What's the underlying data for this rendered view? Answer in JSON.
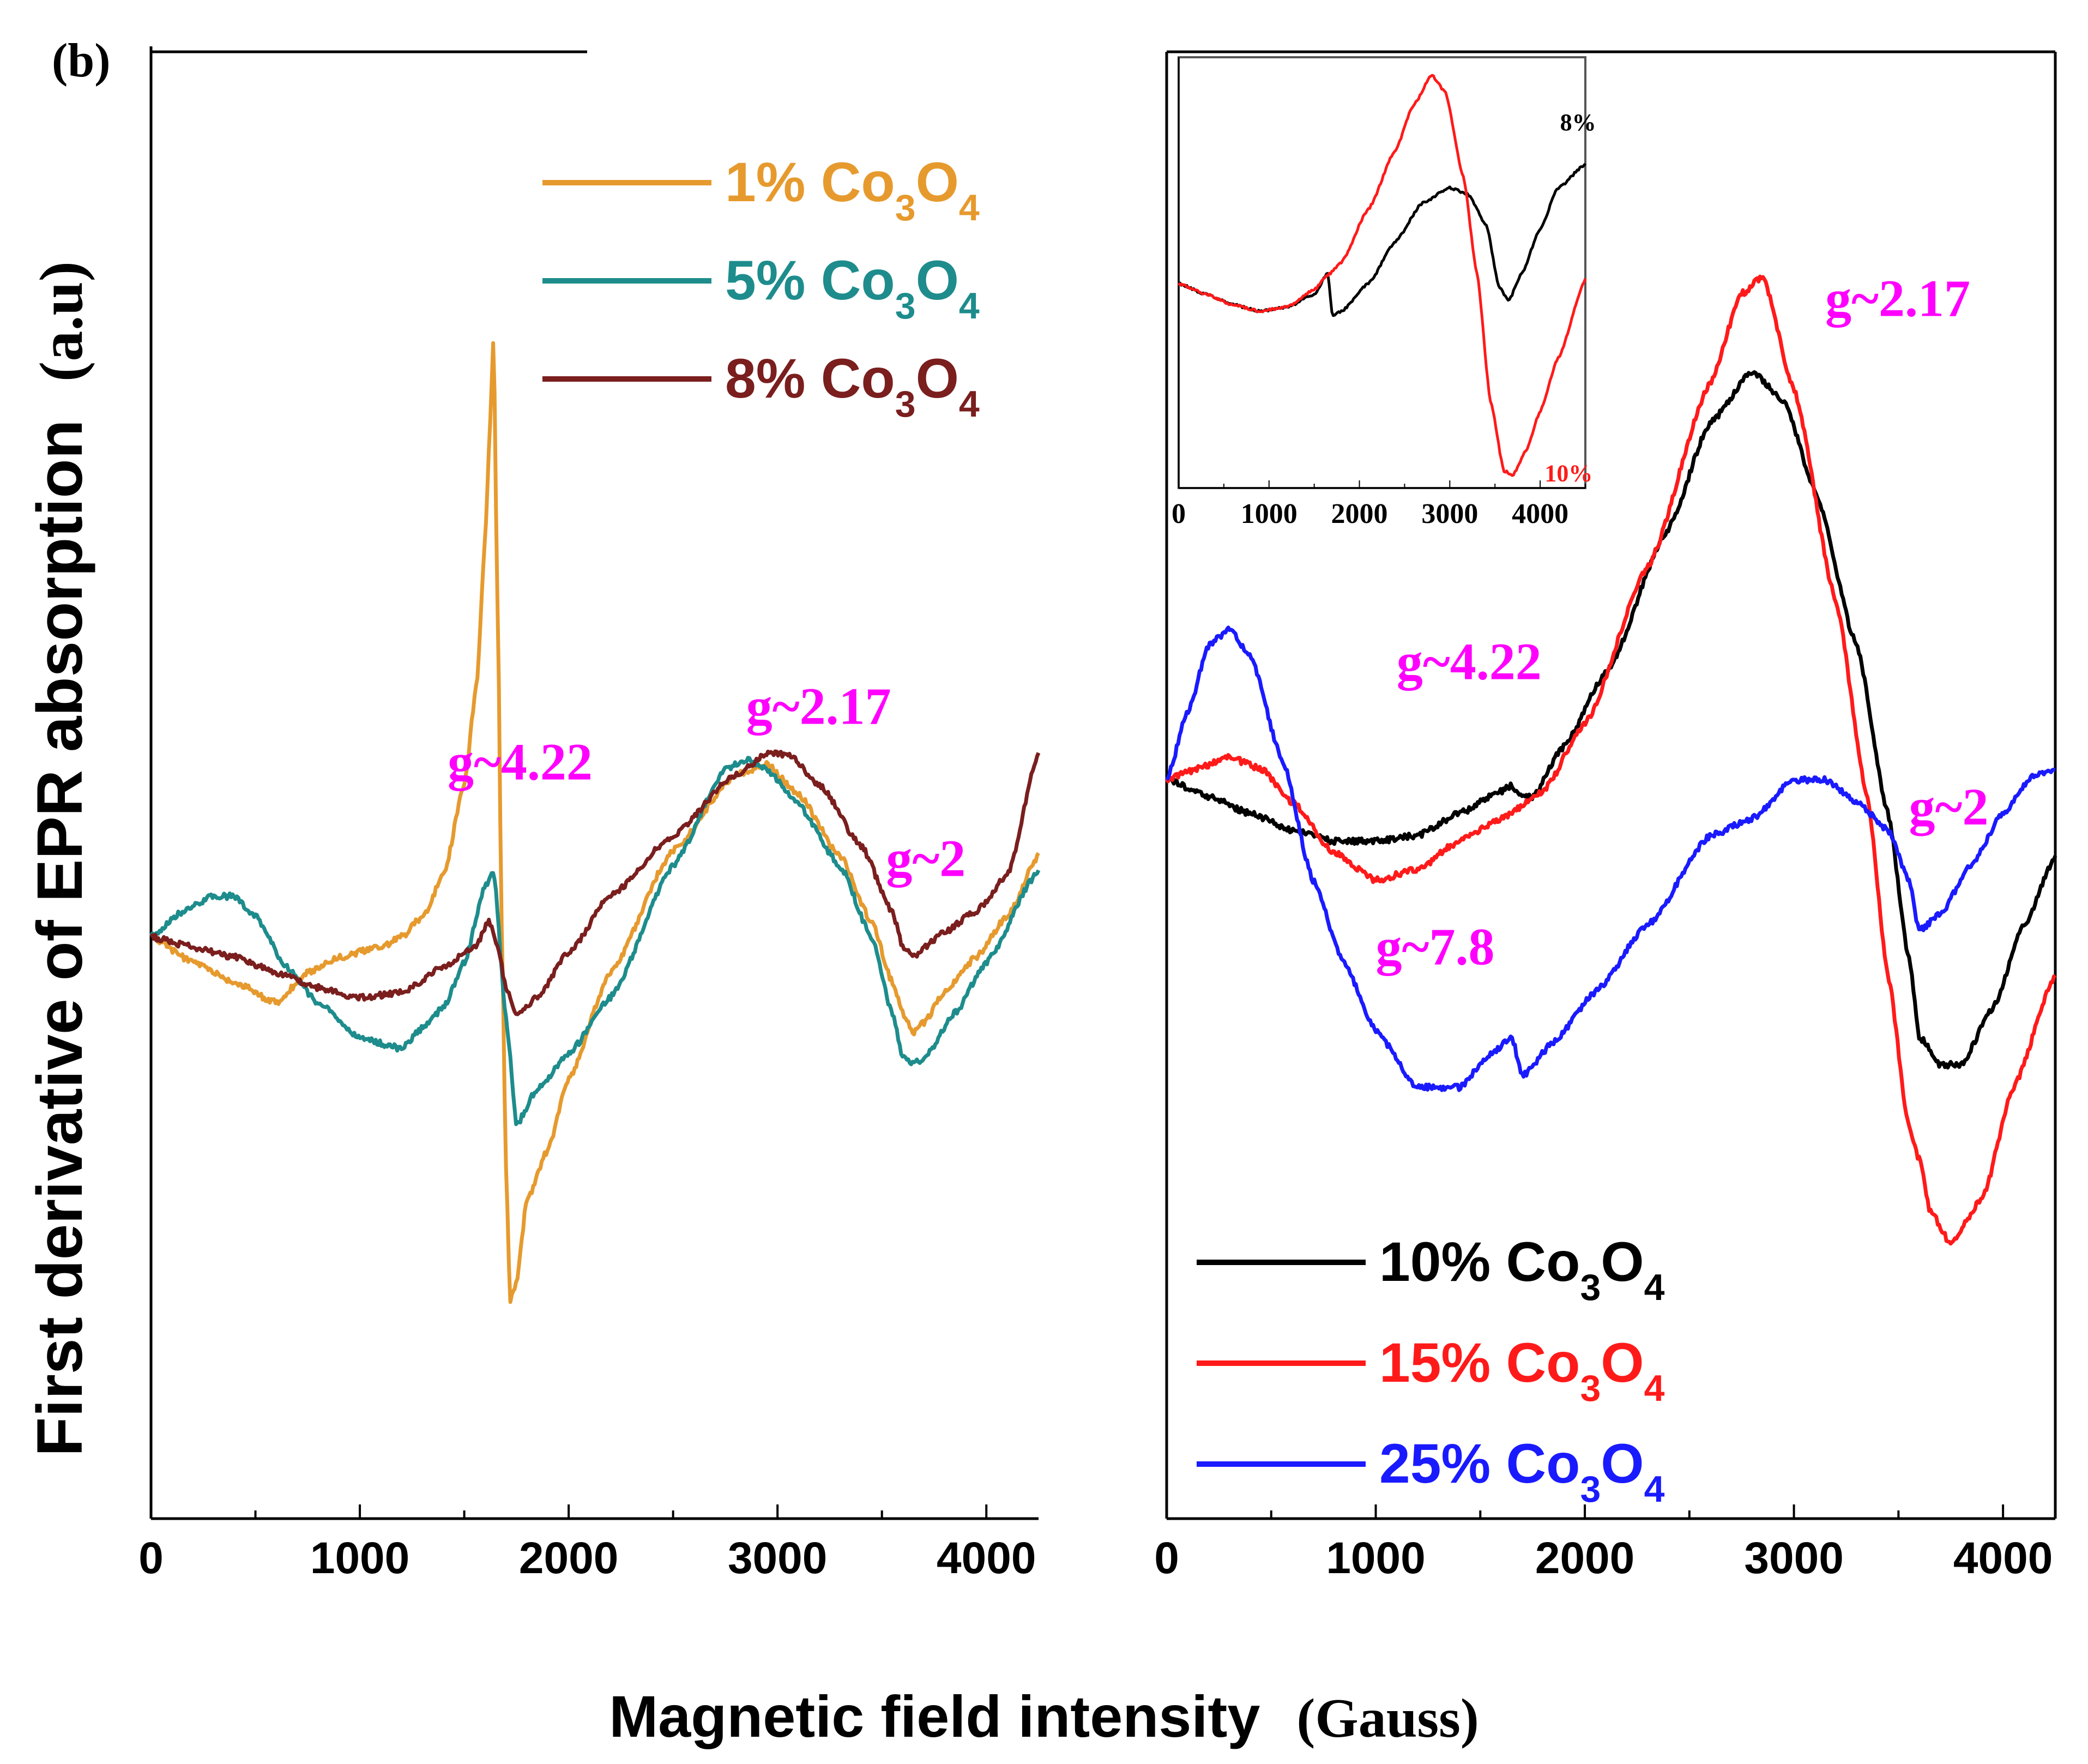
{
  "figure": {
    "panel_label": "(b)",
    "ylabel_sans": "First derivative of EPR absorption",
    "ylabel_units": "(a.u)",
    "xlabel_sans": "Magnetic field intensity",
    "xlabel_units": "(Gauss)"
  },
  "chart_data": [
    {
      "type": "line",
      "panel": "left",
      "xlim": [
        0,
        4250
      ],
      "ylim": [
        -1.0,
        1.0
      ],
      "x_ticks": [
        "0",
        "1000",
        "2000",
        "3000",
        "4000"
      ],
      "grid": false,
      "legend_position": "top-right",
      "series": [
        {
          "name": "1% Co3O4",
          "label_main": "1% Co",
          "label_sub1": "3",
          "label_mid": "O",
          "label_sub2": "4",
          "color": "#E69A2E",
          "x": [
            0,
            200,
            400,
            600,
            750,
            900,
            1100,
            1200,
            1300,
            1400,
            1500,
            1560,
            1600,
            1620,
            1640,
            1660,
            1680,
            1700,
            1720,
            1750,
            1800,
            1900,
            2000,
            2200,
            2500,
            2800,
            2950,
            3100,
            3300,
            3450,
            3550,
            3600,
            3650,
            3700,
            3800,
            3950,
            4100,
            4250
          ],
          "y": [
            0,
            -0.05,
            -0.09,
            -0.13,
            -0.07,
            -0.04,
            -0.02,
            0.0,
            0.04,
            0.12,
            0.3,
            0.5,
            0.78,
            0.98,
            1.18,
            0.65,
            0.0,
            -0.45,
            -0.72,
            -0.68,
            -0.52,
            -0.42,
            -0.28,
            -0.07,
            0.17,
            0.32,
            0.34,
            0.28,
            0.16,
            0.03,
            -0.09,
            -0.15,
            -0.19,
            -0.17,
            -0.11,
            -0.04,
            0.04,
            0.16
          ]
        },
        {
          "name": "5% Co3O4",
          "label_main": "5% Co",
          "label_sub1": "3",
          "label_mid": "O",
          "label_sub2": "4",
          "color": "#1E8C8C",
          "x": [
            0,
            150,
            300,
            400,
            500,
            650,
            800,
            1000,
            1200,
            1300,
            1400,
            1500,
            1600,
            1640,
            1700,
            1750,
            1850,
            2000,
            2200,
            2500,
            2750,
            2850,
            2950,
            3100,
            3300,
            3450,
            3550,
            3600,
            3650,
            3700,
            3850,
            4000,
            4250
          ],
          "y": [
            0,
            0.05,
            0.08,
            0.08,
            0.04,
            -0.06,
            -0.13,
            -0.2,
            -0.22,
            -0.18,
            -0.14,
            -0.05,
            0.1,
            0.13,
            -0.16,
            -0.37,
            -0.3,
            -0.23,
            -0.12,
            0.14,
            0.33,
            0.35,
            0.33,
            0.26,
            0.14,
            0.0,
            -0.15,
            -0.24,
            -0.25,
            -0.24,
            -0.15,
            -0.05,
            0.13
          ]
        },
        {
          "name": "8% Co3O4",
          "label_main": "8% Co",
          "label_sub1": "3",
          "label_mid": "O",
          "label_sub2": "4",
          "color": "#7A1E1E",
          "x": [
            0,
            200,
            400,
            600,
            800,
            1000,
            1200,
            1400,
            1550,
            1620,
            1660,
            1700,
            1750,
            1850,
            2000,
            2200,
            2500,
            2800,
            2950,
            3050,
            3200,
            3400,
            3550,
            3600,
            3650,
            3700,
            3800,
            3950,
            4100,
            4250
          ],
          "y": [
            0,
            -0.02,
            -0.04,
            -0.07,
            -0.1,
            -0.12,
            -0.11,
            -0.06,
            -0.02,
            0.03,
            -0.02,
            -0.1,
            -0.15,
            -0.12,
            -0.03,
            0.08,
            0.2,
            0.32,
            0.36,
            0.36,
            0.3,
            0.18,
            0.05,
            -0.02,
            -0.04,
            -0.02,
            0.01,
            0.05,
            0.12,
            0.36
          ]
        }
      ],
      "annotations": [
        {
          "text": "g~4.22",
          "x": 1420,
          "y": 0.31
        },
        {
          "text": "g~2.17",
          "x": 2850,
          "y": 0.42
        },
        {
          "text": "g~2",
          "x": 3520,
          "y": 0.12
        }
      ]
    },
    {
      "type": "line",
      "panel": "right",
      "xlim": [
        0,
        4250
      ],
      "ylim": [
        -1.0,
        1.0
      ],
      "x_ticks": [
        "0",
        "1000",
        "2000",
        "3000",
        "4000"
      ],
      "grid": false,
      "legend_position": "bottom-center",
      "series": [
        {
          "name": "10% Co3O4",
          "label_main": "10% Co",
          "label_sub1": "3",
          "label_mid": "O",
          "label_sub2": "4",
          "color": "#000000",
          "x": [
            0,
            200,
            400,
            600,
            800,
            1000,
            1200,
            1400,
            1600,
            1650,
            1700,
            1750,
            1900,
            2100,
            2400,
            2600,
            2800,
            2950,
            3100,
            3300,
            3450,
            3550,
            3600,
            3700,
            3800,
            3950,
            4100,
            4250
          ],
          "y": [
            0,
            -0.03,
            -0.06,
            -0.09,
            -0.11,
            -0.11,
            -0.1,
            -0.06,
            -0.02,
            -0.01,
            -0.03,
            -0.03,
            0.06,
            0.19,
            0.45,
            0.64,
            0.73,
            0.68,
            0.52,
            0.24,
            -0.06,
            -0.32,
            -0.46,
            -0.51,
            -0.51,
            -0.41,
            -0.26,
            -0.14
          ]
        },
        {
          "name": "15% Co3O4",
          "label_main": "15% Co",
          "label_sub1": "3",
          "label_mid": "O",
          "label_sub2": "4",
          "color": "#FF1A1A",
          "x": [
            0,
            150,
            300,
            450,
            600,
            800,
            1000,
            1200,
            1400,
            1600,
            1800,
            2000,
            2300,
            2600,
            2750,
            2850,
            3000,
            3200,
            3350,
            3450,
            3550,
            3600,
            3650,
            3750,
            3900,
            4050,
            4250
          ],
          "y": [
            0,
            0.02,
            0.04,
            0.02,
            -0.04,
            -0.13,
            -0.18,
            -0.16,
            -0.11,
            -0.07,
            -0.02,
            0.1,
            0.38,
            0.71,
            0.87,
            0.9,
            0.7,
            0.32,
            -0.03,
            -0.35,
            -0.62,
            -0.68,
            -0.77,
            -0.83,
            -0.75,
            -0.55,
            -0.35
          ]
        },
        {
          "name": "25% Co3O4",
          "label_main": "25% Co",
          "label_sub1": "3",
          "label_mid": "O",
          "label_sub2": "4",
          "color": "#1A1AFF",
          "x": [
            0,
            100,
            200,
            300,
            400,
            550,
            700,
            850,
            1000,
            1200,
            1400,
            1550,
            1650,
            1700,
            1850,
            2050,
            2300,
            2600,
            2800,
            3000,
            3150,
            3300,
            3450,
            3550,
            3600,
            3700,
            3850,
            4000,
            4150,
            4250
          ],
          "y": [
            0,
            0.12,
            0.24,
            0.27,
            0.22,
            0.04,
            -0.18,
            -0.33,
            -0.45,
            -0.55,
            -0.55,
            -0.49,
            -0.46,
            -0.53,
            -0.47,
            -0.38,
            -0.26,
            -0.1,
            -0.07,
            0.0,
            0.0,
            -0.04,
            -0.09,
            -0.18,
            -0.27,
            -0.24,
            -0.15,
            -0.06,
            0.01,
            0.02
          ]
        }
      ],
      "annotations": [
        {
          "text": "g~4.22",
          "x": 1100,
          "y": 0.18
        },
        {
          "text": "g~2.17",
          "x": 3150,
          "y": 0.83
        },
        {
          "text": "g~7.8",
          "x": 1000,
          "y": -0.33
        },
        {
          "text": "g~2",
          "x": 3550,
          "y": -0.08
        }
      ],
      "inset": {
        "xlim": [
          0,
          4500
        ],
        "ylim": [
          -1.0,
          1.0
        ],
        "x_ticks": [
          "0",
          "1000",
          "2000",
          "3000",
          "4000"
        ],
        "series": [
          {
            "name": "8%",
            "label": "8%",
            "color": "#000000",
            "x": [
              0,
              300,
              600,
              900,
              1200,
              1500,
              1650,
              1700,
              1800,
              2100,
              2400,
              2700,
              3000,
              3200,
              3400,
              3550,
              3650,
              3800,
              4000,
              4200,
              4500
            ],
            "y": [
              0,
              -0.05,
              -0.1,
              -0.13,
              -0.11,
              -0.05,
              0.05,
              -0.15,
              -0.13,
              0.0,
              0.2,
              0.38,
              0.45,
              0.42,
              0.28,
              -0.02,
              -0.08,
              0.05,
              0.26,
              0.45,
              0.56
            ]
          },
          {
            "name": "10%",
            "label": "10%",
            "color": "#FF1A1A",
            "x": [
              0,
              300,
              600,
              900,
              1200,
              1500,
              1650,
              1800,
              2100,
              2400,
              2600,
              2800,
              2950,
              3150,
              3300,
              3450,
              3600,
              3700,
              3850,
              4000,
              4200,
              4500
            ],
            "y": [
              0,
              -0.05,
              -0.1,
              -0.13,
              -0.11,
              -0.03,
              0.04,
              0.1,
              0.35,
              0.63,
              0.84,
              0.98,
              0.9,
              0.5,
              0.05,
              -0.55,
              -0.88,
              -0.9,
              -0.78,
              -0.6,
              -0.35,
              0.02
            ]
          }
        ]
      }
    }
  ]
}
